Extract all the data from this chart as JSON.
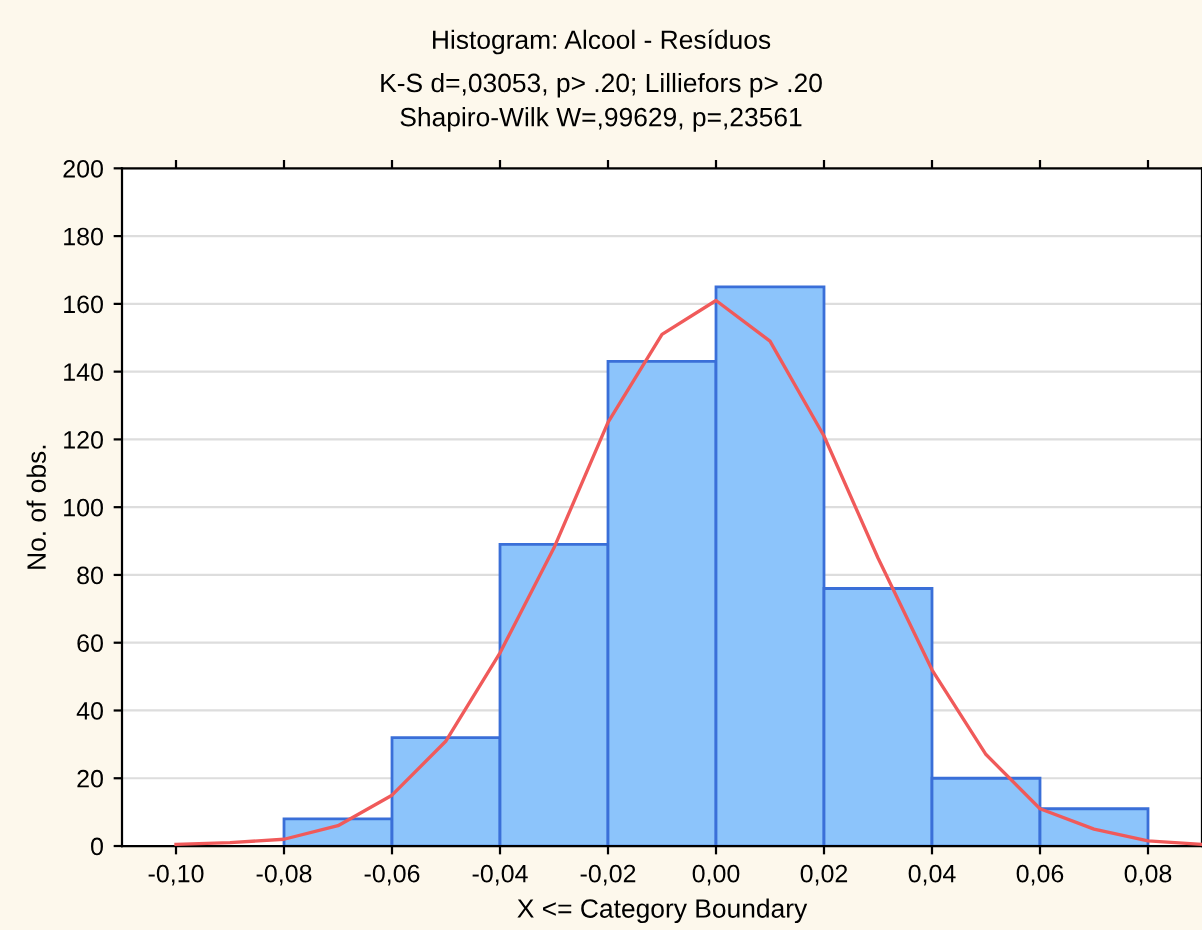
{
  "chart_data": {
    "type": "histogram",
    "title": "Histogram: Alcool - Resíduos",
    "subtitle": "K-S d=,03053, p> .20; Lilliefors p> .20\nShapiro-Wilk W=,99629, p=,23561",
    "xlabel": "X <= Category Boundary",
    "ylabel": "No. of obs.",
    "series": [
      {
        "color": "#8cc4fb",
        "bins": [
          -0.08,
          -0.06,
          -0.04,
          -0.02,
          0.0,
          0.02,
          0.04,
          0.06,
          0.08
        ],
        "values": [
          8,
          32,
          89,
          143,
          165,
          76,
          20,
          11
        ]
      },
      {
        "type": "line",
        "color": "#f05a5a",
        "x": [
          -0.1,
          -0.09,
          -0.08,
          -0.07,
          -0.06,
          -0.05,
          -0.04,
          -0.03,
          -0.02,
          -0.01,
          0.0,
          0.01,
          0.02,
          0.03,
          0.04,
          0.05,
          0.06,
          0.07,
          0.08,
          0.09
        ],
        "values": [
          0.5,
          1,
          2,
          6,
          15,
          31,
          57,
          88,
          125,
          151,
          161,
          149,
          121,
          85,
          52,
          27,
          11,
          5,
          1.5,
          0.5
        ]
      }
    ],
    "xlim": [
      -0.11,
      0.09
    ],
    "xticks": [
      {
        "value": -0.1,
        "label": "-0,10"
      },
      {
        "value": -0.08,
        "label": "-0,08"
      },
      {
        "value": -0.06,
        "label": "-0,06"
      },
      {
        "value": -0.04,
        "label": "-0,04"
      },
      {
        "value": -0.02,
        "label": "-0,02"
      },
      {
        "value": 0.0,
        "label": "0,00"
      },
      {
        "value": 0.02,
        "label": "0,02"
      },
      {
        "value": 0.04,
        "label": "0,04"
      },
      {
        "value": 0.06,
        "label": "0,06"
      },
      {
        "value": 0.08,
        "label": "0,08"
      }
    ],
    "ylim": [
      0,
      200
    ],
    "yticks": [
      0,
      20,
      40,
      60,
      80,
      100,
      120,
      140,
      160,
      180,
      200
    ],
    "grid": "y",
    "legend": false
  }
}
